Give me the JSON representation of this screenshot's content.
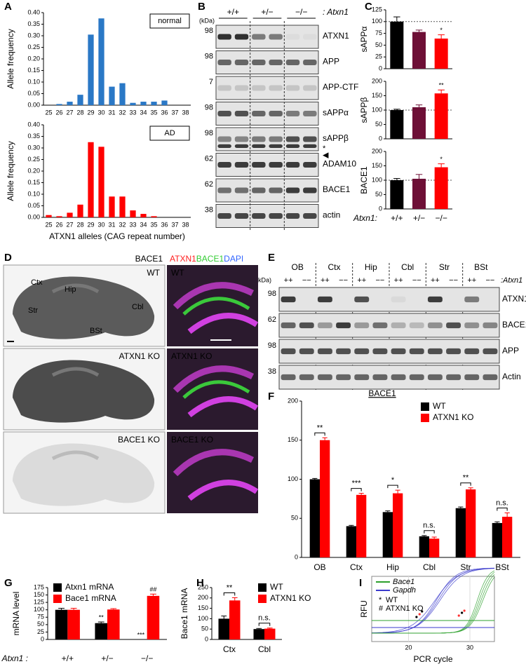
{
  "panel_labels": [
    "A",
    "B",
    "C",
    "D",
    "E",
    "F",
    "G",
    "H",
    "I"
  ],
  "chart_data": [
    {
      "type": "bar",
      "ylabel": "Allele frequency",
      "legend": "upper right",
      "series": [
        {
          "name": "normal",
          "color": "#2a78c6",
          "values": [
            0,
            0.005,
            0.015,
            0.045,
            0.305,
            0.375,
            0.08,
            0.095,
            0.01,
            0.015,
            0.015,
            0.02,
            0,
            0
          ]
        }
      ],
      "categories": [
        25,
        26,
        27,
        28,
        29,
        30,
        31,
        32,
        33,
        34,
        35,
        36,
        37,
        38
      ],
      "ylim": [
        0,
        0.4
      ],
      "yticks": [
        {
          "value": 0,
          "label": "0.00"
        },
        {
          "value": 0.05,
          "label": "0.05"
        },
        {
          "value": 0.1,
          "label": "0.10"
        },
        {
          "value": 0.15,
          "label": "0.15"
        },
        {
          "value": 0.2,
          "label": "0.20"
        },
        {
          "value": 0.25,
          "label": "0.25"
        },
        {
          "value": 0.3,
          "label": "0.30"
        },
        {
          "value": 0.35,
          "label": "0.35"
        },
        {
          "value": 0.4,
          "label": "0.40"
        }
      ]
    },
    {
      "type": "bar",
      "ylabel": "Allele frequency",
      "legend": "upper right",
      "xlabel": "ATXN1 alleles (CAG repeat number)",
      "series": [
        {
          "name": "AD",
          "color": "#ff0000",
          "values": [
            0.01,
            0.005,
            0.02,
            0.055,
            0.325,
            0.305,
            0.09,
            0.09,
            0.03,
            0.015,
            0.005,
            0,
            0,
            0
          ]
        }
      ],
      "categories": [
        25,
        26,
        27,
        28,
        29,
        30,
        31,
        32,
        33,
        34,
        35,
        36,
        37,
        38
      ],
      "ylim": [
        0,
        0.4
      ],
      "yticks": [
        {
          "value": 0,
          "label": "0.00"
        },
        {
          "value": 0.05,
          "label": "0.05"
        },
        {
          "value": 0.1,
          "label": "0.10"
        },
        {
          "value": 0.15,
          "label": "0.15"
        },
        {
          "value": 0.2,
          "label": "0.20"
        },
        {
          "value": 0.25,
          "label": "0.25"
        },
        {
          "value": 0.3,
          "label": "0.30"
        },
        {
          "value": 0.35,
          "label": "0.35"
        },
        {
          "value": 0.4,
          "label": "0.40"
        }
      ]
    },
    {
      "type": "bar",
      "ylabel": "sAPPα",
      "refline": 100,
      "series": [
        {
          "values": [
            100,
            78,
            64
          ],
          "errors": [
            10,
            4,
            8
          ],
          "colors": [
            "#000000",
            "#6d0f36",
            "#ff0000"
          ],
          "significance": [
            null,
            null,
            "*"
          ]
        }
      ],
      "ylim": [
        0,
        125
      ],
      "yticks": [
        0,
        25,
        50,
        75,
        100,
        125
      ]
    },
    {
      "type": "bar",
      "ylabel": "sAPPβ",
      "refline": 100,
      "series": [
        {
          "values": [
            100,
            110,
            158
          ],
          "errors": [
            3,
            8,
            12
          ],
          "colors": [
            "#000000",
            "#6d0f36",
            "#ff0000"
          ],
          "significance": [
            null,
            null,
            "**"
          ]
        }
      ],
      "ylim": [
        0,
        200
      ],
      "yticks": [
        0,
        50,
        100,
        150,
        200
      ]
    },
    {
      "type": "bar",
      "ylabel": "BACE1",
      "refline": 100,
      "x_prefix": "Atxn1:",
      "categories": [
        "+/+",
        "+/−",
        "−/−"
      ],
      "series": [
        {
          "values": [
            100,
            105,
            145
          ],
          "errors": [
            6,
            15,
            12
          ],
          "colors": [
            "#000000",
            "#6d0f36",
            "#ff0000"
          ],
          "significance": [
            null,
            null,
            "*"
          ]
        }
      ],
      "ylim": [
        0,
        200
      ],
      "yticks": [
        0,
        50,
        100,
        150,
        200
      ]
    },
    {
      "type": "bar",
      "title": "BACE1",
      "legend": "upper right",
      "categories": [
        "OB",
        "Ctx",
        "Hip",
        "Cbl",
        "Str",
        "BSt"
      ],
      "series": [
        {
          "name": "WT",
          "color": "#000000",
          "values": [
            100,
            40,
            58,
            27,
            63,
            44
          ],
          "errors": [
            1,
            1,
            1.5,
            1,
            1.5,
            1.5
          ]
        },
        {
          "name": "ATXN1 KO",
          "color": "#ff0000",
          "values": [
            150,
            80,
            82,
            24,
            87,
            52
          ],
          "errors": [
            3,
            2,
            4,
            2,
            2,
            5
          ]
        }
      ],
      "significance": [
        "**",
        "***",
        "*",
        "n.s.",
        "**",
        "n.s."
      ],
      "ylim": [
        0,
        200
      ],
      "yticks": [
        0,
        50,
        100,
        150,
        200
      ]
    },
    {
      "type": "bar",
      "ylabel": "mRNA level",
      "legend": "upper left",
      "x_prefix": "Atxn1 :",
      "categories": [
        "+/+",
        "+/−",
        "−/−"
      ],
      "series": [
        {
          "name": "Atxn1 mRNA",
          "color": "#000000",
          "values": [
            100,
            55,
            0
          ],
          "errors": [
            5,
            4,
            null
          ],
          "significance": [
            null,
            "**",
            "***"
          ]
        },
        {
          "name": "Bace1 mRNA",
          "color": "#ff0000",
          "values": [
            100,
            101,
            147
          ],
          "errors": [
            5,
            3,
            6
          ],
          "significance": [
            null,
            null,
            "##"
          ]
        }
      ],
      "ylim": [
        0,
        175
      ],
      "yticks": [
        0,
        25,
        50,
        75,
        100,
        125,
        150,
        175
      ]
    },
    {
      "type": "bar",
      "ylabel": "Bace1 mRNA",
      "legend": "upper right",
      "categories": [
        "Ctx",
        "Cbl"
      ],
      "series": [
        {
          "name": "WT",
          "color": "#000000",
          "values": [
            100,
            50
          ],
          "errors": [
            13,
            3
          ]
        },
        {
          "name": "ATXN1 KO",
          "color": "#ff0000",
          "values": [
            188,
            52
          ],
          "errors": [
            13,
            3
          ]
        }
      ],
      "significance": [
        "**",
        "n.s."
      ],
      "ylim": [
        0,
        250
      ],
      "yticks": [
        0,
        50,
        100,
        150,
        200,
        250
      ]
    }
  ],
  "blot_b": {
    "unit": "(kDa)",
    "genotypes": [
      "+/+",
      "+/−",
      "−/−"
    ],
    "gene": ": Atxn1",
    "rows": [
      {
        "kda": 98,
        "label": "ATXN1"
      },
      {
        "kda": 98,
        "label": "APP"
      },
      {
        "kda": 7,
        "label": "APP-CTF"
      },
      {
        "kda": 98,
        "label": "sAPPα"
      },
      {
        "kda": 98,
        "label": "sAPPβ",
        "note": "*"
      },
      {
        "kda": 62,
        "label": "ADAM10",
        "note": "◀"
      },
      {
        "kda": 62,
        "label": "BACE1"
      },
      {
        "kda": 38,
        "label": "actin"
      }
    ]
  },
  "blot_e": {
    "unit": "(kDa)",
    "regions": [
      "OB",
      "Ctx",
      "Hip",
      "Cbl",
      "Str",
      "BSt"
    ],
    "genotypes": [
      "++",
      "−−"
    ],
    "gene": ":Atxn1",
    "rows": [
      {
        "kda": 98,
        "label": "ATXN1"
      },
      {
        "kda": 62,
        "label": "BACE1"
      },
      {
        "kda": 98,
        "label": "APP"
      },
      {
        "kda": 38,
        "label": "Actin"
      }
    ]
  },
  "images_d": {
    "stain_left": "BACE1",
    "stain_right": [
      "ATXN1",
      "BACE1",
      "DAPI"
    ],
    "genotypes": [
      "WT",
      "ATXN1 KO",
      "BACE1 KO"
    ],
    "regions": [
      "Ctx",
      "Hip",
      "Str",
      "BSt",
      "Cbl"
    ]
  },
  "qpcr_i": {
    "xlabel": "PCR cycle",
    "ylabel": "RFU",
    "xlim": [
      14,
      34
    ],
    "xticks": [
      20,
      30
    ],
    "lines": [
      {
        "name": "Bace1",
        "color": "#2ca02c"
      },
      {
        "name": "Gapdh",
        "color": "#3a3acc"
      }
    ],
    "points": [
      {
        "symbol": "*",
        "label": "WT",
        "color": "#000000"
      },
      {
        "symbol": "#",
        "label": "ATXN1 KO",
        "color": "#ff3333"
      }
    ]
  }
}
